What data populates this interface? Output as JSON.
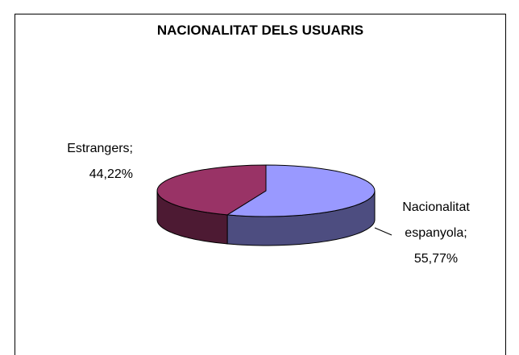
{
  "chart_data": {
    "type": "pie3d",
    "title": "NACIONALITAT DELS USUARIS",
    "categories": [
      "Nacionalitat espanyola;",
      "Estrangers;"
    ],
    "values": [
      55.77,
      44.22
    ],
    "value_labels": [
      "55,77%",
      "44,22%"
    ],
    "colors": [
      "#9999ff",
      "#993366"
    ],
    "side_colors": [
      "#4d4d80",
      "#4d1a33"
    ]
  }
}
